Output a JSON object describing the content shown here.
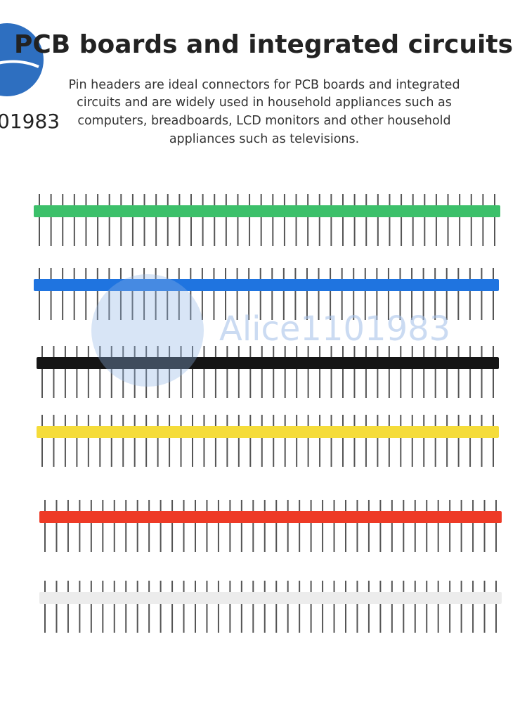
{
  "header": {
    "title": "PCB boards and integrated circuits",
    "description_lines": [
      "Pin headers are ideal connectors for PCB boards and integrated",
      "circuits and are widely used in household appliances such as",
      "computers, breadboards, LCD monitors and other household",
      "appliances such as televisions."
    ]
  },
  "watermark": {
    "corner_text": "01983",
    "center_text": "Alice1101983"
  }
}
